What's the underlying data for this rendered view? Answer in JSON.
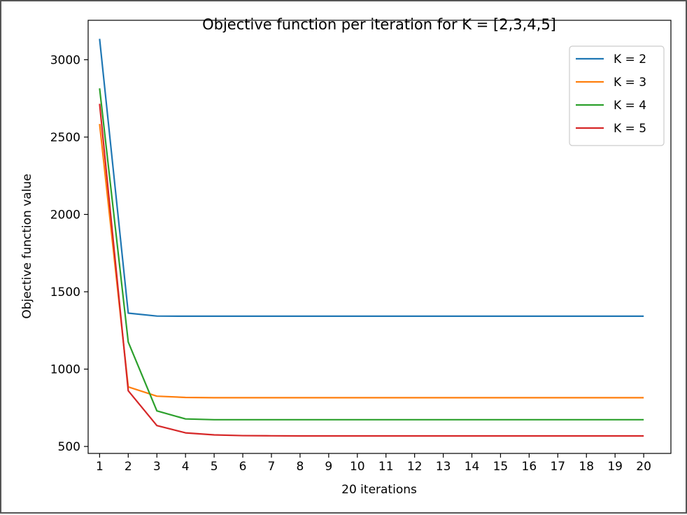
{
  "chart_data": {
    "type": "line",
    "title": "Objective function per iteration for K = [2,3,4,5]",
    "xlabel": "20 iterations",
    "ylabel": "Objective function value",
    "x": [
      1,
      2,
      3,
      4,
      5,
      6,
      7,
      8,
      9,
      10,
      11,
      12,
      13,
      14,
      15,
      16,
      17,
      18,
      19,
      20
    ],
    "xlim": [
      0.6,
      20.95
    ],
    "ylim": [
      455,
      3255
    ],
    "yticks": [
      500,
      1000,
      1500,
      2000,
      2500,
      3000
    ],
    "grid": false,
    "legend_position": "top-right",
    "series": [
      {
        "name": "K = 2",
        "color": "#1f77b4",
        "values": [
          3135,
          1362,
          1343,
          1342,
          1342,
          1342,
          1342,
          1342,
          1342,
          1342,
          1342,
          1342,
          1342,
          1342,
          1342,
          1342,
          1342,
          1342,
          1342,
          1342
        ]
      },
      {
        "name": "K = 3",
        "color": "#ff7f0e",
        "values": [
          2585,
          885,
          825,
          817,
          815,
          815,
          815,
          815,
          815,
          815,
          815,
          815,
          815,
          815,
          815,
          815,
          815,
          815,
          815,
          815
        ]
      },
      {
        "name": "K = 4",
        "color": "#2ca02c",
        "values": [
          2815,
          1175,
          730,
          678,
          673,
          673,
          673,
          673,
          673,
          673,
          673,
          673,
          673,
          673,
          673,
          673,
          673,
          673,
          673,
          673
        ]
      },
      {
        "name": "K = 5",
        "color": "#d62728",
        "values": [
          2715,
          860,
          635,
          588,
          575,
          570,
          569,
          568,
          568,
          568,
          568,
          568,
          568,
          568,
          568,
          568,
          568,
          568,
          568,
          568
        ]
      }
    ]
  }
}
